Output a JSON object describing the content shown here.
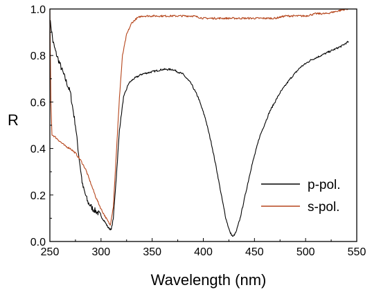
{
  "chart_data": {
    "type": "line",
    "xlabel": "Wavelength (nm)",
    "ylabel": "R",
    "xlim": [
      250,
      550
    ],
    "ylim": [
      0.0,
      1.0
    ],
    "x_ticks": [
      "250",
      "300",
      "350",
      "400",
      "450",
      "500",
      "550"
    ],
    "y_ticks": [
      "0.0",
      "0.2",
      "0.4",
      "0.6",
      "0.8",
      "1.0"
    ],
    "grid": false,
    "legend_position": "right-lower",
    "series": [
      {
        "name": "p-pol.",
        "color": "#000000",
        "x": [
          250,
          251,
          253,
          256,
          260,
          265,
          270,
          275,
          278,
          282,
          287,
          292,
          298,
          303,
          307,
          310,
          312,
          315,
          318,
          322,
          327,
          332,
          340,
          350,
          360,
          370,
          380,
          388,
          395,
          402,
          408,
          413,
          418,
          422,
          426,
          429,
          432,
          436,
          441,
          447,
          455,
          465,
          475,
          485,
          495,
          505,
          515,
          525,
          535,
          542
        ],
        "y": [
          0.95,
          0.93,
          0.86,
          0.81,
          0.76,
          0.7,
          0.64,
          0.5,
          0.38,
          0.24,
          0.17,
          0.14,
          0.12,
          0.09,
          0.06,
          0.05,
          0.1,
          0.28,
          0.48,
          0.62,
          0.68,
          0.7,
          0.72,
          0.73,
          0.74,
          0.74,
          0.72,
          0.68,
          0.62,
          0.53,
          0.42,
          0.31,
          0.19,
          0.1,
          0.04,
          0.02,
          0.04,
          0.1,
          0.2,
          0.32,
          0.45,
          0.56,
          0.64,
          0.7,
          0.75,
          0.78,
          0.8,
          0.82,
          0.84,
          0.86
        ]
      },
      {
        "name": "s-pol.",
        "color": "#b5451b",
        "x": [
          250,
          251,
          252,
          255,
          260,
          265,
          270,
          275,
          280,
          285,
          290,
          295,
          300,
          305,
          309,
          312,
          315,
          318,
          321,
          325,
          330,
          335,
          340,
          350,
          360,
          370,
          380,
          390,
          400,
          410,
          420,
          430,
          440,
          450,
          460,
          470,
          480,
          490,
          500,
          510,
          520,
          530,
          540,
          542
        ],
        "y": [
          1.0,
          0.6,
          0.46,
          0.45,
          0.43,
          0.41,
          0.4,
          0.38,
          0.35,
          0.31,
          0.25,
          0.19,
          0.14,
          0.1,
          0.07,
          0.15,
          0.38,
          0.62,
          0.8,
          0.89,
          0.94,
          0.96,
          0.97,
          0.97,
          0.97,
          0.97,
          0.97,
          0.97,
          0.96,
          0.96,
          0.96,
          0.96,
          0.96,
          0.96,
          0.96,
          0.96,
          0.97,
          0.97,
          0.97,
          0.98,
          0.98,
          0.99,
          1.0,
          1.0
        ]
      }
    ]
  }
}
